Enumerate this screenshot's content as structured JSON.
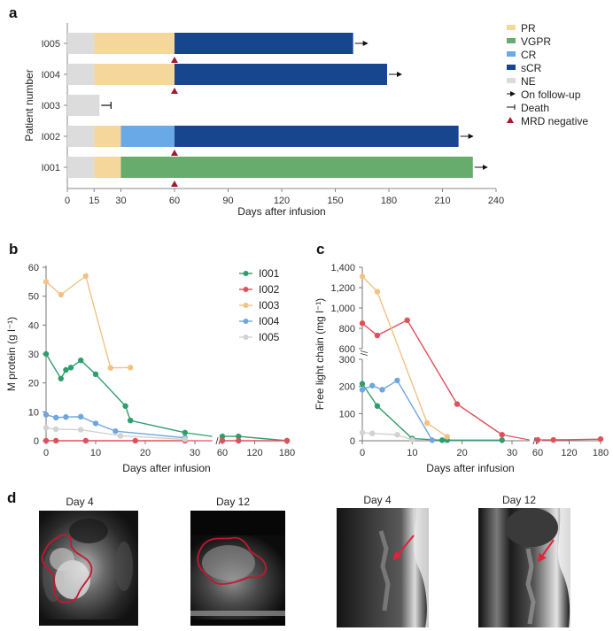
{
  "figure": {
    "panels": [
      "a",
      "b",
      "c",
      "d"
    ]
  },
  "colors": {
    "PR": "#f6d79b",
    "VGPR": "#67ac6c",
    "CR": "#6aa9e8",
    "sCR": "#17468f",
    "NE": "#dcdcdc",
    "MRD": "#a31a2e",
    "I001": "#2f9e6d",
    "I002": "#e0505a",
    "I003": "#f2c283",
    "I004": "#6fa6de",
    "I005": "#d2d2d2"
  },
  "chart_data": [
    {
      "panel": "a",
      "type": "bar",
      "orientation": "horizontal-stacked",
      "title": "",
      "xlabel": "Days after infusion",
      "ylabel": "Patient number",
      "xlim": [
        0,
        240
      ],
      "xticks": [
        0,
        15,
        30,
        60,
        90,
        120,
        150,
        180,
        210,
        240
      ],
      "categories": [
        "I005",
        "I004",
        "I003",
        "I002",
        "I001"
      ],
      "bars": [
        {
          "patient": "I005",
          "segments": [
            {
              "status": "NE",
              "start": 0,
              "end": 15
            },
            {
              "status": "PR",
              "start": 15,
              "end": 60
            },
            {
              "status": "sCR",
              "start": 60,
              "end": 160
            }
          ],
          "outcome": "On follow-up",
          "mrd_negative_day": 60
        },
        {
          "patient": "I004",
          "segments": [
            {
              "status": "NE",
              "start": 0,
              "end": 15
            },
            {
              "status": "PR",
              "start": 15,
              "end": 60
            },
            {
              "status": "sCR",
              "start": 60,
              "end": 179
            }
          ],
          "outcome": "On follow-up",
          "mrd_negative_day": 60
        },
        {
          "patient": "I003",
          "segments": [
            {
              "status": "NE",
              "start": 0,
              "end": 18
            }
          ],
          "outcome": "Death",
          "mrd_negative_day": null
        },
        {
          "patient": "I002",
          "segments": [
            {
              "status": "NE",
              "start": 0,
              "end": 15
            },
            {
              "status": "PR",
              "start": 15,
              "end": 30
            },
            {
              "status": "CR",
              "start": 30,
              "end": 60
            },
            {
              "status": "sCR",
              "start": 60,
              "end": 219
            }
          ],
          "outcome": "On follow-up",
          "mrd_negative_day": 60
        },
        {
          "patient": "I001",
          "segments": [
            {
              "status": "NE",
              "start": 0,
              "end": 15
            },
            {
              "status": "PR",
              "start": 15,
              "end": 30
            },
            {
              "status": "VGPR",
              "start": 30,
              "end": 227
            }
          ],
          "outcome": "On follow-up",
          "mrd_negative_day": 60
        }
      ],
      "legend": {
        "placement": "top-right",
        "entries": [
          {
            "key": "PR",
            "label": "PR",
            "kind": "swatch"
          },
          {
            "key": "VGPR",
            "label": "VGPR",
            "kind": "swatch"
          },
          {
            "key": "CR",
            "label": "CR",
            "kind": "swatch"
          },
          {
            "key": "sCR",
            "label": "sCR",
            "kind": "swatch"
          },
          {
            "key": "NE",
            "label": "NE",
            "kind": "swatch"
          },
          {
            "key": "followup",
            "label": "On follow-up",
            "kind": "arrow"
          },
          {
            "key": "death",
            "label": "Death",
            "kind": "bar-end"
          },
          {
            "key": "MRD",
            "label": "MRD negative",
            "kind": "triangle"
          }
        ]
      }
    },
    {
      "panel": "b",
      "type": "line",
      "title": "",
      "xlabel": "Days after infusion",
      "ylabel": "M protein (g l⁻¹)",
      "ylim": [
        0,
        60
      ],
      "yticks": [
        0,
        10,
        20,
        30,
        40,
        50,
        60
      ],
      "x_segments": [
        {
          "range": [
            0,
            33
          ],
          "ticks": [
            0,
            10,
            20,
            30
          ]
        },
        {
          "range": [
            60,
            180
          ],
          "ticks": [
            60,
            120,
            180
          ]
        }
      ],
      "legend": {
        "placement": "top-right",
        "entries": [
          "I001",
          "I002",
          "I003",
          "I004",
          "I005"
        ]
      },
      "series": [
        {
          "name": "I001",
          "points": [
            [
              0,
              30
            ],
            [
              3,
              21.5
            ],
            [
              4,
              24.5
            ],
            [
              5,
              25.3
            ],
            [
              7,
              27.8
            ],
            [
              10,
              23
            ],
            [
              16,
              12
            ],
            [
              17,
              7
            ],
            [
              28,
              2.8
            ],
            [
              60,
              1.5
            ],
            [
              90,
              1.5
            ],
            [
              180,
              0
            ]
          ]
        },
        {
          "name": "I002",
          "points": [
            [
              0,
              0
            ],
            [
              2,
              0
            ],
            [
              8,
              0
            ],
            [
              18,
              0
            ],
            [
              28,
              0
            ],
            [
              60,
              0
            ],
            [
              90,
              0
            ],
            [
              180,
              0
            ]
          ]
        },
        {
          "name": "I003",
          "points": [
            [
              0,
              55
            ],
            [
              3,
              50.5
            ],
            [
              8,
              57
            ],
            [
              13,
              25.2
            ],
            [
              17,
              25.3
            ]
          ]
        },
        {
          "name": "I004",
          "points": [
            [
              0,
              9
            ],
            [
              2,
              8
            ],
            [
              4,
              8.2
            ],
            [
              7,
              8.3
            ],
            [
              10,
              6
            ],
            [
              14,
              3.3
            ],
            [
              28,
              1
            ]
          ]
        },
        {
          "name": "I005",
          "points": [
            [
              0,
              4.5
            ],
            [
              2,
              4
            ],
            [
              7,
              3.8
            ],
            [
              15,
              1.7
            ],
            [
              28,
              0.5
            ]
          ]
        }
      ]
    },
    {
      "panel": "c",
      "type": "line",
      "title": "",
      "xlabel": "Days after infusion",
      "ylabel": "Free light chain (mg l⁻¹)",
      "y_segments": [
        {
          "range": [
            0,
            300
          ],
          "ticks": [
            0,
            100,
            200,
            300
          ]
        },
        {
          "range": [
            600,
            1400
          ],
          "ticks": [
            600,
            800,
            1000,
            1200,
            1400
          ]
        }
      ],
      "ytick_labels": [
        "0",
        "100",
        "200",
        "300",
        "600",
        "800",
        "1,000",
        "1,200",
        "1,400"
      ],
      "x_segments": [
        {
          "range": [
            0,
            33
          ],
          "ticks": [
            0,
            10,
            20,
            30
          ]
        },
        {
          "range": [
            60,
            180
          ],
          "ticks": [
            60,
            120,
            180
          ]
        }
      ],
      "series": [
        {
          "name": "I001",
          "points": [
            [
              0,
              210
            ],
            [
              3,
              128
            ],
            [
              10,
              8
            ],
            [
              16,
              2
            ],
            [
              17,
              2
            ],
            [
              28,
              2
            ]
          ]
        },
        {
          "name": "I002",
          "points": [
            [
              0,
              850
            ],
            [
              3,
              730
            ],
            [
              9,
              880
            ],
            [
              19,
              135
            ],
            [
              28,
              22
            ],
            [
              60,
              3
            ],
            [
              90,
              3
            ],
            [
              180,
              6
            ]
          ]
        },
        {
          "name": "I003",
          "points": [
            [
              0,
              1310
            ],
            [
              3,
              1160
            ],
            [
              13,
              65
            ],
            [
              17,
              15
            ]
          ]
        },
        {
          "name": "I004",
          "points": [
            [
              0,
              188
            ],
            [
              2,
              203
            ],
            [
              4,
              188
            ],
            [
              7,
              222
            ],
            [
              14,
              2
            ]
          ]
        },
        {
          "name": "I005",
          "points": [
            [
              0,
              30
            ],
            [
              2,
              27
            ],
            [
              7,
              22
            ],
            [
              10,
              3
            ]
          ]
        }
      ]
    }
  ],
  "panel_d": {
    "images": [
      {
        "title": "Day 4",
        "view": "axial MRI",
        "annotation": "red tumor outline"
      },
      {
        "title": "Day 12",
        "view": "axial MRI",
        "annotation": "red tumor outline"
      },
      {
        "title": "Day 4",
        "view": "sagittal MRI",
        "annotation": "red arrow"
      },
      {
        "title": "Day 12",
        "view": "sagittal MRI",
        "annotation": "red arrow"
      }
    ]
  }
}
